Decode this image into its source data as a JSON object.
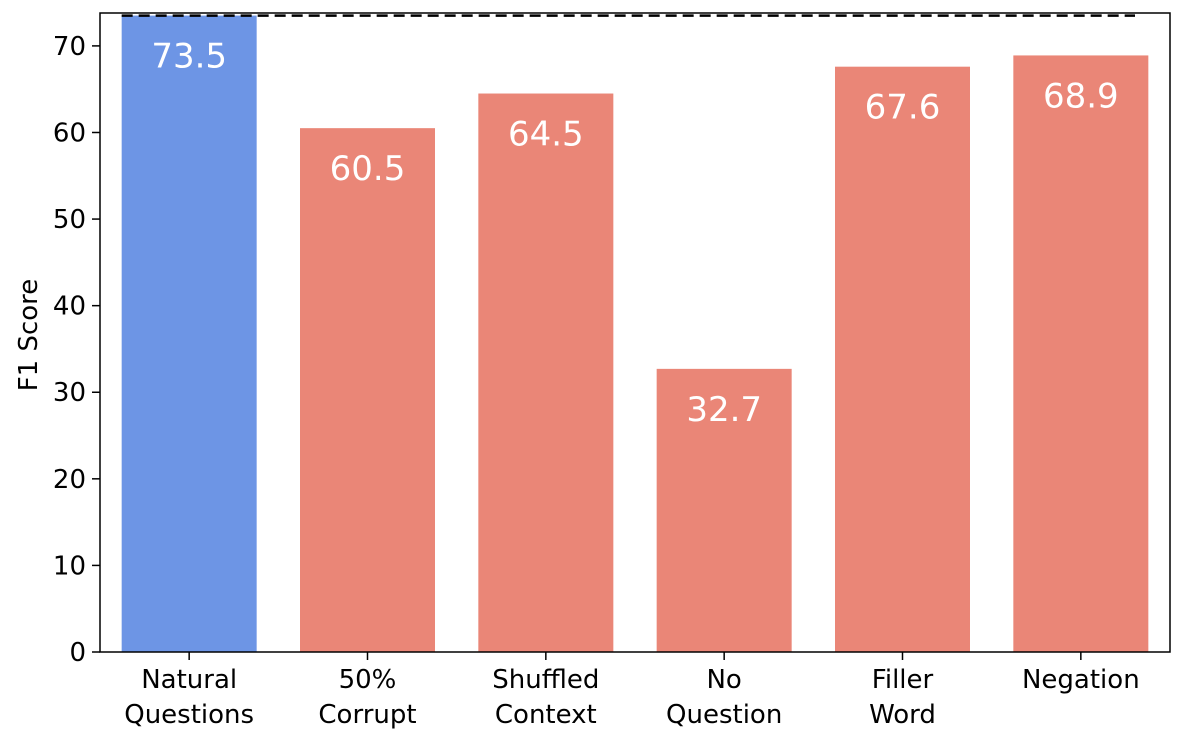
{
  "chart_data": {
    "type": "bar",
    "categories": [
      [
        "Natural",
        "Questions"
      ],
      [
        "50%",
        "Corrupt"
      ],
      [
        "Shuffled",
        "Context"
      ],
      [
        "No",
        "Question"
      ],
      [
        "Filler",
        "Word"
      ],
      [
        "Negation"
      ]
    ],
    "values": [
      73.5,
      60.5,
      64.5,
      32.7,
      67.6,
      68.9
    ],
    "value_labels": [
      "73.5",
      "60.5",
      "64.5",
      "32.7",
      "67.6",
      "68.9"
    ],
    "bar_colors": [
      "#6d95e5",
      "#ea8677",
      "#ea8677",
      "#ea8677",
      "#ea8677",
      "#ea8677"
    ],
    "title": "",
    "xlabel": "",
    "ylabel": "F1 Score",
    "ylim": [
      0,
      73.8
    ],
    "yticks": [
      0,
      10,
      20,
      30,
      40,
      50,
      60,
      70
    ],
    "ytick_labels": [
      "0",
      "10",
      "20",
      "30",
      "40",
      "50",
      "60",
      "70"
    ],
    "reference_line": {
      "value": 73.5,
      "style": "dashed",
      "color": "#000000"
    },
    "grid": false,
    "legend": "none",
    "value_label_color": "#ffffff"
  }
}
